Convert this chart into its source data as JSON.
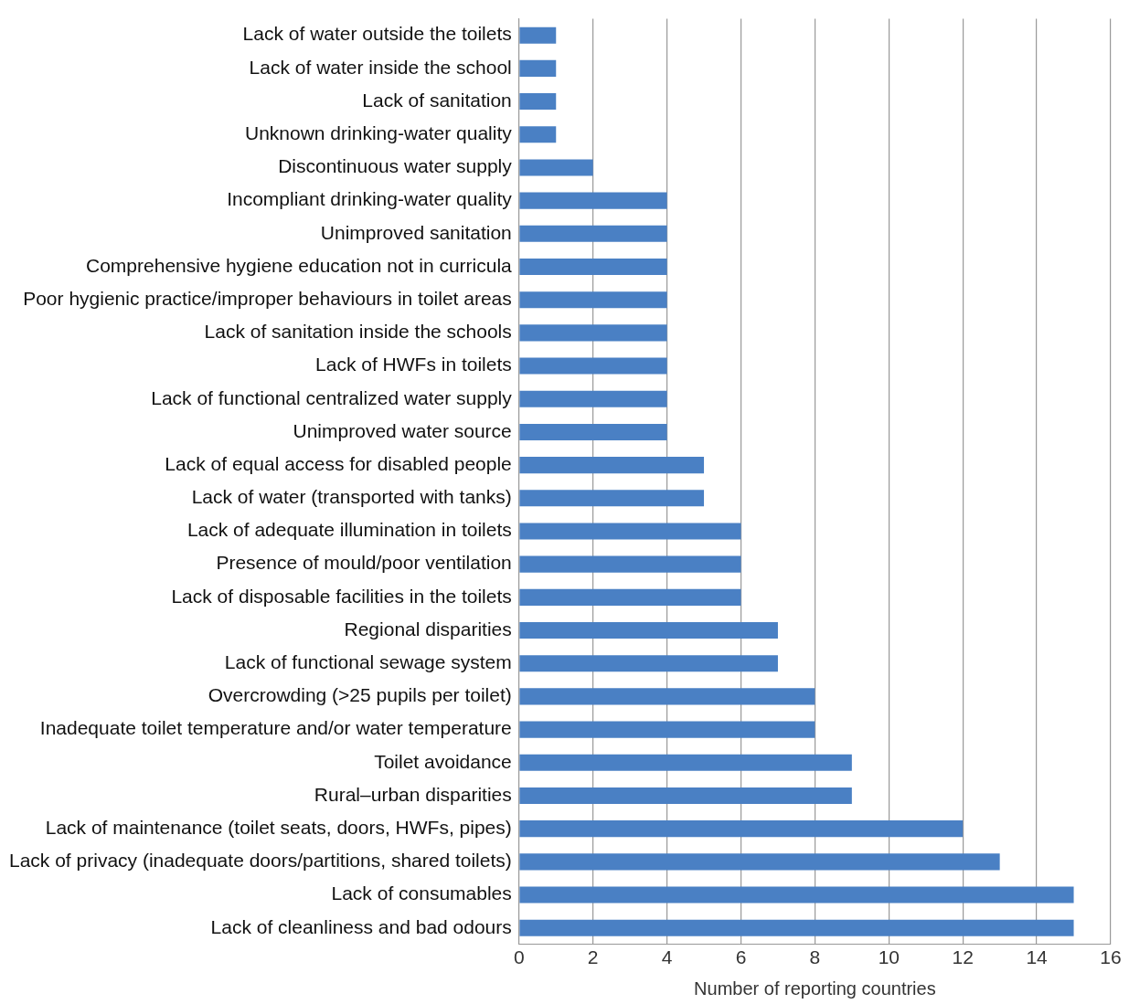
{
  "chart_data": {
    "type": "bar",
    "orientation": "horizontal",
    "categories": [
      "Lack of water outside the toilets",
      "Lack of water inside the school",
      "Lack of sanitation",
      "Unknown drinking-water quality",
      "Discontinuous water supply",
      "Incompliant drinking-water quality",
      "Unimproved sanitation",
      "Comprehensive hygiene education not in curricula",
      "Poor hygienic practice/improper behaviours in toilet areas",
      "Lack of sanitation inside the schools",
      "Lack of HWFs in toilets",
      "Lack of functional centralized water supply",
      "Unimproved water source",
      "Lack of equal access for disabled people",
      "Lack of water (transported with tanks)",
      "Lack of adequate illumination in toilets",
      "Presence of mould/poor ventilation",
      "Lack of disposable facilities in the toilets",
      "Regional disparities",
      "Lack of functional sewage system",
      "Overcrowding (>25 pupils per toilet)",
      "Inadequate toilet temperature and/or water temperature",
      "Toilet avoidance",
      "Rural–urban disparities",
      "Lack of maintenance (toilet seats, doors, HWFs, pipes)",
      "Lack of privacy (inadequate doors/partitions, shared toilets)",
      "Lack of consumables",
      "Lack of cleanliness and bad odours"
    ],
    "values": [
      1,
      1,
      1,
      1,
      2,
      4,
      4,
      4,
      4,
      4,
      4,
      4,
      4,
      5,
      5,
      6,
      6,
      6,
      7,
      7,
      8,
      8,
      9,
      9,
      12,
      13,
      15,
      15
    ],
    "color": "#4a80c4",
    "xlim": [
      0,
      16
    ],
    "xticks": [
      0,
      2,
      4,
      6,
      8,
      10,
      12,
      14,
      16
    ],
    "xlabel": "Number of reporting countries",
    "grid": "x"
  }
}
